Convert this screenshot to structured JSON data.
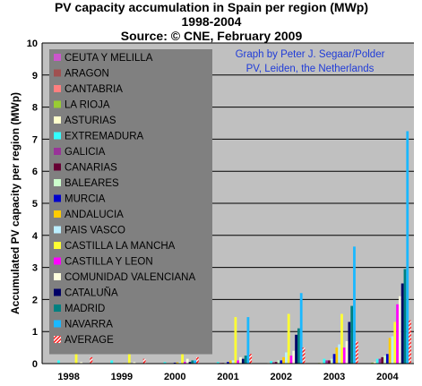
{
  "chart_data": {
    "type": "bar",
    "title_lines": [
      "PV capacity accumulation in Spain per region (MWp)",
      "1998-2004",
      "Source: © CNE, February 2009"
    ],
    "credit_lines": [
      "Graph by Peter J. Segaar/Polder",
      "PV, Leiden, the Netherlands"
    ],
    "credit_color": "#1f3bd8",
    "ylabel": "Accumulated PV capacity per region (MWp)",
    "xlabel": "",
    "ylim": [
      0,
      10
    ],
    "yticks": [
      0,
      1,
      2,
      3,
      4,
      5,
      6,
      7,
      8,
      9,
      10
    ],
    "grid": true,
    "legend_position": "top-left",
    "background_colors": {
      "plot": "#c0c0c0",
      "legend": "#808080",
      "grid": "#000000"
    },
    "categories": [
      "1998",
      "1999",
      "2000",
      "2001",
      "2002",
      "2003",
      "2004"
    ],
    "series": [
      {
        "name": "CEUTA Y MELILLA",
        "color": "#cc55cc",
        "values": [
          0,
          0,
          0,
          0,
          0,
          0,
          0
        ]
      },
      {
        "name": "ARAGON",
        "color": "#a05050",
        "values": [
          0,
          0,
          0,
          0,
          0,
          0,
          0
        ]
      },
      {
        "name": "CANTABRIA",
        "color": "#ff7f7f",
        "values": [
          0,
          0,
          0,
          0,
          0,
          0,
          0
        ]
      },
      {
        "name": "LA RIOJA",
        "color": "#99cc33",
        "values": [
          0,
          0,
          0,
          0,
          0,
          0.02,
          0.03
        ]
      },
      {
        "name": "ASTURIAS",
        "color": "#ffffcc",
        "values": [
          0,
          0,
          0,
          0.01,
          0.02,
          0.03,
          0.05
        ]
      },
      {
        "name": "EXTREMADURA",
        "color": "#33ffff",
        "values": [
          0.1,
          0.1,
          0.05,
          0.05,
          0.08,
          0.15,
          0.15
        ]
      },
      {
        "name": "GALICIA",
        "color": "#993399",
        "values": [
          0,
          0,
          0,
          0.02,
          0.04,
          0.1,
          0.15
        ]
      },
      {
        "name": "CANARIAS",
        "color": "#660033",
        "values": [
          0,
          0,
          0,
          0.02,
          0.05,
          0.1,
          0.2
        ]
      },
      {
        "name": "BALEARES",
        "color": "#ccffcc",
        "values": [
          0,
          0,
          0,
          0.02,
          0.1,
          0.15,
          0.25
        ]
      },
      {
        "name": "MURCIA",
        "color": "#0000cc",
        "values": [
          0,
          0,
          0.03,
          0.05,
          0.1,
          0.3,
          0.3
        ]
      },
      {
        "name": "ANDALUCIA",
        "color": "#ffcc00",
        "values": [
          0.02,
          0.02,
          0.04,
          0.1,
          0.2,
          0.5,
          0.8
        ]
      },
      {
        "name": "PAIS VASCO",
        "color": "#bbeeff",
        "values": [
          0,
          0,
          0.05,
          0.1,
          0.35,
          0.6,
          0.85
        ]
      },
      {
        "name": "CASTILLA LA MANCHA",
        "color": "#ffff33",
        "values": [
          1.2,
          1.2,
          1.4,
          1.45,
          1.55,
          1.55,
          1.3
        ]
      },
      {
        "name": "CASTILLA Y LEON",
        "color": "#ff00ff",
        "values": [
          0,
          0,
          0.05,
          0.1,
          0.25,
          0.5,
          1.85
        ]
      },
      {
        "name": "COMUNIDAD VALENCIANA",
        "color": "#ffffdd",
        "values": [
          0.05,
          0.05,
          0.15,
          0.2,
          0.4,
          0.7,
          2.1
        ]
      },
      {
        "name": "CATALUÑA",
        "color": "#000066",
        "values": [
          0,
          0,
          0.05,
          0.15,
          0.9,
          1.3,
          2.5
        ]
      },
      {
        "name": "MADRID",
        "color": "#008080",
        "values": [
          0,
          0,
          0.1,
          0.25,
          1.1,
          1.8,
          2.95
        ]
      },
      {
        "name": "NAVARRA",
        "color": "#1ab8ff",
        "values": [
          0,
          0,
          0.1,
          1.45,
          2.2,
          3.65,
          7.25
        ]
      },
      {
        "name": "AVERAGE",
        "color": "#ff3333",
        "pattern": "hatch",
        "values": [
          0.2,
          0.15,
          0.2,
          0.3,
          0.5,
          0.7,
          1.35
        ]
      }
    ]
  }
}
